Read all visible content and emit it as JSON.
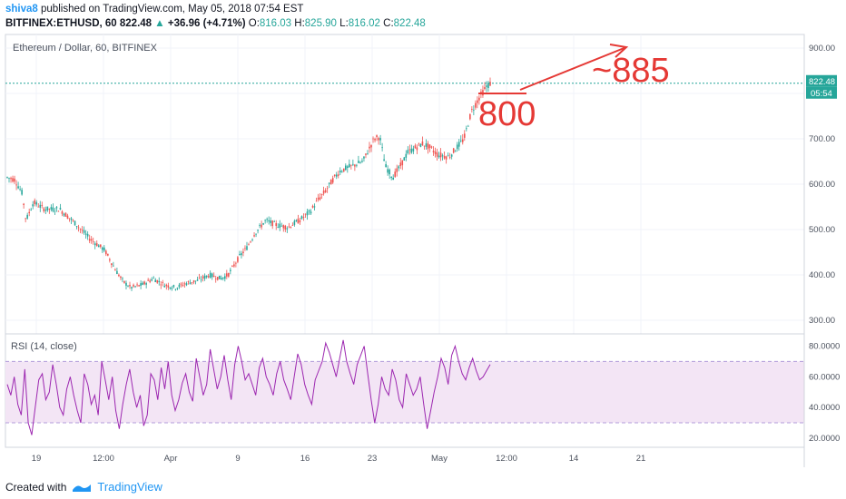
{
  "header": {
    "user": "shiva8",
    "published": "published on TradingView.com, May 05, 2018 07:54 EST",
    "symbol": "BITFINEX:ETHUSD, 60",
    "last": "822.48",
    "change": "+36.96 (+4.71%)",
    "o_label": "O:",
    "o_value": "816.03",
    "h_label": "H:",
    "h_value": "825.90",
    "l_label": "L:",
    "l_value": "816.02",
    "c_label": "C:",
    "c_value": "822.48"
  },
  "footer": {
    "created_with": "Created with",
    "brand": "TradingView"
  },
  "colors": {
    "up": "#26a69a",
    "down": "#ef5350",
    "rsi_line": "#9c27b0",
    "rsi_band": "#f3e5f5",
    "annotation": "#e53935",
    "price_line": "#26a69a"
  },
  "chart_data": [
    {
      "type": "candlestick",
      "title": "Ethereum / Dollar, 60, BITFINEX",
      "x_ticks": [
        "19",
        "12:00",
        "Apr",
        "9",
        "16",
        "23",
        "May",
        "12:00",
        "14",
        "21"
      ],
      "y_ticks": [
        "300.00",
        "400.00",
        "500.00",
        "600.00",
        "700.00",
        "800.00",
        "900.00"
      ],
      "ylim": [
        270,
        930
      ],
      "last_price_label": "822.48",
      "countdown_label": "05:54",
      "approx_close_path": [
        [
          0,
          615
        ],
        [
          4,
          610
        ],
        [
          8,
          580
        ],
        [
          10,
          520
        ],
        [
          14,
          560
        ],
        [
          20,
          545
        ],
        [
          28,
          545
        ],
        [
          36,
          515
        ],
        [
          44,
          480
        ],
        [
          52,
          455
        ],
        [
          58,
          410
        ],
        [
          62,
          385
        ],
        [
          66,
          372
        ],
        [
          72,
          378
        ],
        [
          78,
          392
        ],
        [
          84,
          378
        ],
        [
          90,
          372
        ],
        [
          96,
          382
        ],
        [
          102,
          388
        ],
        [
          108,
          400
        ],
        [
          114,
          392
        ],
        [
          118,
          400
        ],
        [
          124,
          440
        ],
        [
          128,
          460
        ],
        [
          132,
          490
        ],
        [
          138,
          520
        ],
        [
          144,
          510
        ],
        [
          150,
          505
        ],
        [
          156,
          520
        ],
        [
          162,
          540
        ],
        [
          166,
          565
        ],
        [
          170,
          585
        ],
        [
          174,
          610
        ],
        [
          178,
          630
        ],
        [
          184,
          640
        ],
        [
          190,
          650
        ],
        [
          196,
          700
        ],
        [
          199,
          705
        ],
        [
          202,
          640
        ],
        [
          206,
          615
        ],
        [
          210,
          640
        ],
        [
          214,
          670
        ],
        [
          218,
          680
        ],
        [
          222,
          690
        ],
        [
          226,
          680
        ],
        [
          230,
          665
        ],
        [
          236,
          660
        ],
        [
          240,
          680
        ],
        [
          244,
          700
        ],
        [
          248,
          760
        ],
        [
          252,
          790
        ],
        [
          256,
          815
        ],
        [
          258,
          822
        ]
      ],
      "annotations": [
        {
          "text": "800",
          "kind": "support"
        },
        {
          "text": "~885",
          "kind": "target"
        }
      ]
    },
    {
      "type": "line",
      "title": "RSI (14, close)",
      "y_ticks": [
        "20.0000",
        "40.0000",
        "60.0000",
        "80.0000"
      ],
      "ylim": [
        14,
        88
      ],
      "bands": [
        30,
        70
      ],
      "series": [
        {
          "values": [
            55,
            48,
            60,
            42,
            35,
            65,
            30,
            22,
            40,
            58,
            62,
            45,
            50,
            68,
            55,
            40,
            35,
            52,
            60,
            48,
            38,
            30,
            62,
            55,
            42,
            48,
            35,
            70,
            58,
            45,
            60,
            38,
            26,
            42,
            55,
            65,
            50,
            40,
            48,
            28,
            35,
            62,
            58,
            45,
            66,
            52,
            70,
            48,
            38,
            45,
            56,
            62,
            50,
            44,
            72,
            60,
            48,
            55,
            78,
            65,
            52,
            60,
            74,
            58,
            45,
            68,
            80,
            70,
            58,
            62,
            55,
            48,
            66,
            72,
            60,
            55,
            48,
            62,
            70,
            58,
            52,
            45,
            60,
            75,
            68,
            55,
            48,
            42,
            58,
            64,
            70,
            82,
            76,
            68,
            60,
            72,
            84,
            70,
            62,
            55,
            68,
            74,
            80,
            62,
            45,
            30,
            42,
            60,
            52,
            48,
            65,
            58,
            45,
            40,
            62,
            55,
            48,
            52,
            60,
            42,
            26,
            38,
            50,
            60,
            72,
            66,
            55,
            74,
            80,
            70,
            62,
            58,
            66,
            72,
            64,
            58,
            60,
            64,
            68
          ]
        }
      ]
    }
  ]
}
